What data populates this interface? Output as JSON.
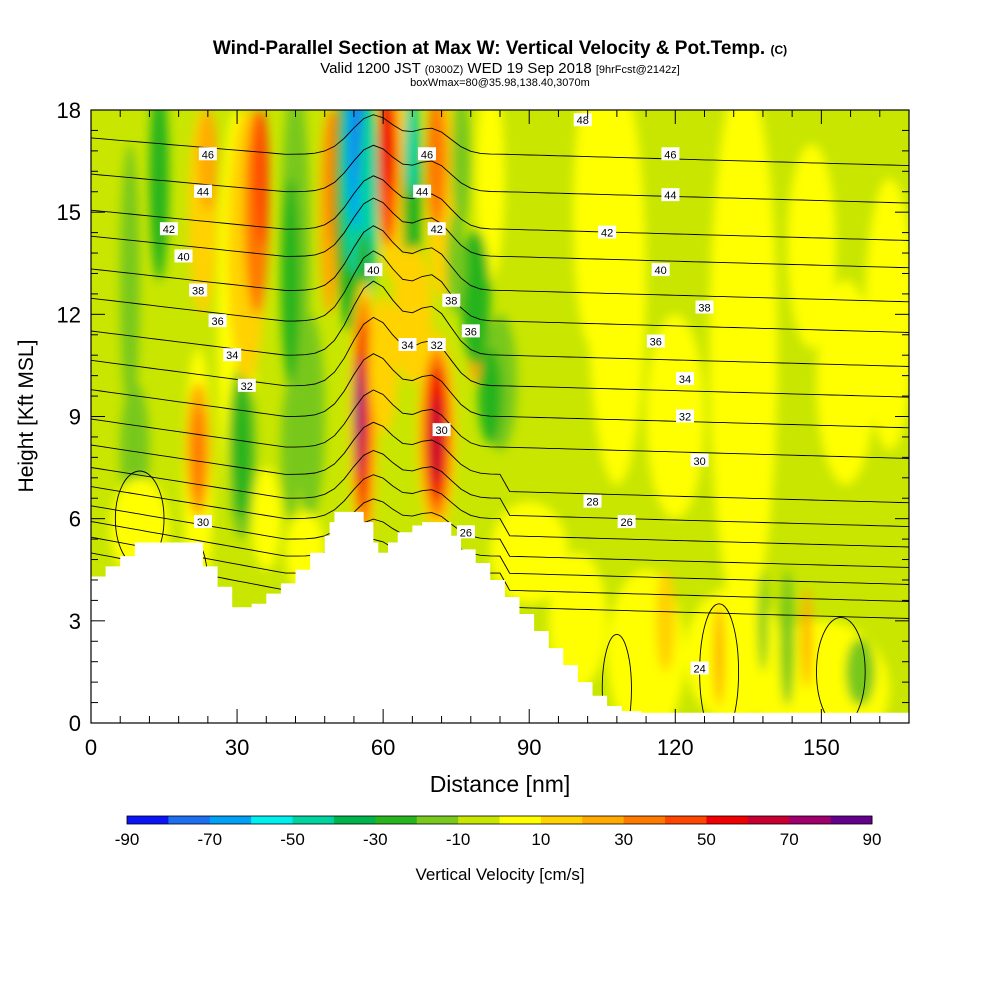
{
  "title": {
    "main": "Wind-Parallel Section at Max W: Vertical Velocity & Pot.Temp.",
    "mark": "(C)",
    "sub_a": "Valid 1200 JST",
    "sub_b": "(0300Z)",
    "sub_c": "WED 19 Sep 2018",
    "sub_d": "[9hrFcst@2142z]",
    "box": "boxWmax=80@35.98,138.40,3070m"
  },
  "chart_data": {
    "type": "heatmap",
    "xlabel": "Distance [nm]",
    "ylabel": "Height [Kft MSL]",
    "xlim": [
      0,
      168
    ],
    "ylim": [
      0,
      18
    ],
    "xticks": [
      0,
      30,
      60,
      90,
      120,
      150
    ],
    "yticks": [
      0,
      3,
      6,
      9,
      12,
      15,
      18
    ],
    "grid": false,
    "colorbar": {
      "label": "Vertical Velocity [cm/s]",
      "ticks": [
        -90,
        -70,
        -50,
        -30,
        -10,
        10,
        30,
        50,
        70,
        90
      ],
      "colors": [
        "#0a14f5",
        "#1e6ef0",
        "#00a0f5",
        "#00f0f0",
        "#00d2a0",
        "#00b44b",
        "#28b41e",
        "#78c81e",
        "#c8e600",
        "#ffff00",
        "#ffd200",
        "#ffaa00",
        "#ff7800",
        "#ff4600",
        "#f00000",
        "#c80032",
        "#a0006e",
        "#64008c"
      ]
    },
    "terrain_kft": {
      "x": [
        0,
        3,
        6,
        9,
        21,
        23,
        26,
        29,
        33,
        36,
        39,
        42,
        45,
        48,
        49,
        50,
        54,
        56,
        58,
        59,
        61,
        63,
        66,
        68,
        72,
        74,
        76,
        79,
        82,
        85,
        88,
        91,
        94,
        97,
        100,
        103,
        106,
        109,
        113,
        168
      ],
      "y": [
        4.3,
        4.6,
        4.9,
        5.3,
        5.3,
        4.6,
        4.0,
        3.4,
        3.5,
        3.8,
        4.1,
        4.5,
        5.0,
        5.5,
        5.9,
        6.2,
        6.2,
        5.9,
        5.3,
        5.0,
        5.3,
        5.6,
        5.8,
        5.9,
        5.9,
        5.5,
        5.1,
        4.7,
        4.2,
        3.7,
        3.2,
        2.7,
        2.2,
        1.7,
        1.2,
        0.8,
        0.5,
        0.35,
        0.3,
        0.3
      ]
    },
    "isentrope_labels": [
      "24",
      "26",
      "28",
      "30",
      "32",
      "34",
      "36",
      "38",
      "40",
      "42",
      "44",
      "46",
      "48"
    ],
    "isentrope_label_positions": [
      {
        "t": "46",
        "x": 24,
        "y": 16.7
      },
      {
        "t": "44",
        "x": 23,
        "y": 15.6
      },
      {
        "t": "42",
        "x": 16,
        "y": 14.5
      },
      {
        "t": "40",
        "x": 19,
        "y": 13.7
      },
      {
        "t": "38",
        "x": 22,
        "y": 12.7
      },
      {
        "t": "36",
        "x": 26,
        "y": 11.8
      },
      {
        "t": "34",
        "x": 29,
        "y": 10.8
      },
      {
        "t": "32",
        "x": 32,
        "y": 9.9
      },
      {
        "t": "30",
        "x": 23,
        "y": 5.9
      },
      {
        "t": "40",
        "x": 58,
        "y": 13.3
      },
      {
        "t": "34",
        "x": 65,
        "y": 11.1
      },
      {
        "t": "32",
        "x": 71,
        "y": 11.1
      },
      {
        "t": "46",
        "x": 69,
        "y": 16.7
      },
      {
        "t": "44",
        "x": 68,
        "y": 15.6
      },
      {
        "t": "42",
        "x": 71,
        "y": 14.5
      },
      {
        "t": "38",
        "x": 74,
        "y": 12.4
      },
      {
        "t": "36",
        "x": 78,
        "y": 11.5
      },
      {
        "t": "30",
        "x": 72,
        "y": 8.6
      },
      {
        "t": "26",
        "x": 77,
        "y": 5.6
      },
      {
        "t": "48",
        "x": 101,
        "y": 17.7
      },
      {
        "t": "46",
        "x": 119,
        "y": 16.7
      },
      {
        "t": "44",
        "x": 119,
        "y": 15.5
      },
      {
        "t": "42",
        "x": 106,
        "y": 14.4
      },
      {
        "t": "40",
        "x": 117,
        "y": 13.3
      },
      {
        "t": "38",
        "x": 126,
        "y": 12.2
      },
      {
        "t": "36",
        "x": 116,
        "y": 11.2
      },
      {
        "t": "34",
        "x": 122,
        "y": 10.1
      },
      {
        "t": "32",
        "x": 122,
        "y": 9.0
      },
      {
        "t": "30",
        "x": 125,
        "y": 7.7
      },
      {
        "t": "28",
        "x": 103,
        "y": 6.5
      },
      {
        "t": "26",
        "x": 110,
        "y": 5.9
      },
      {
        "t": "24",
        "x": 125,
        "y": 1.6
      }
    ]
  }
}
